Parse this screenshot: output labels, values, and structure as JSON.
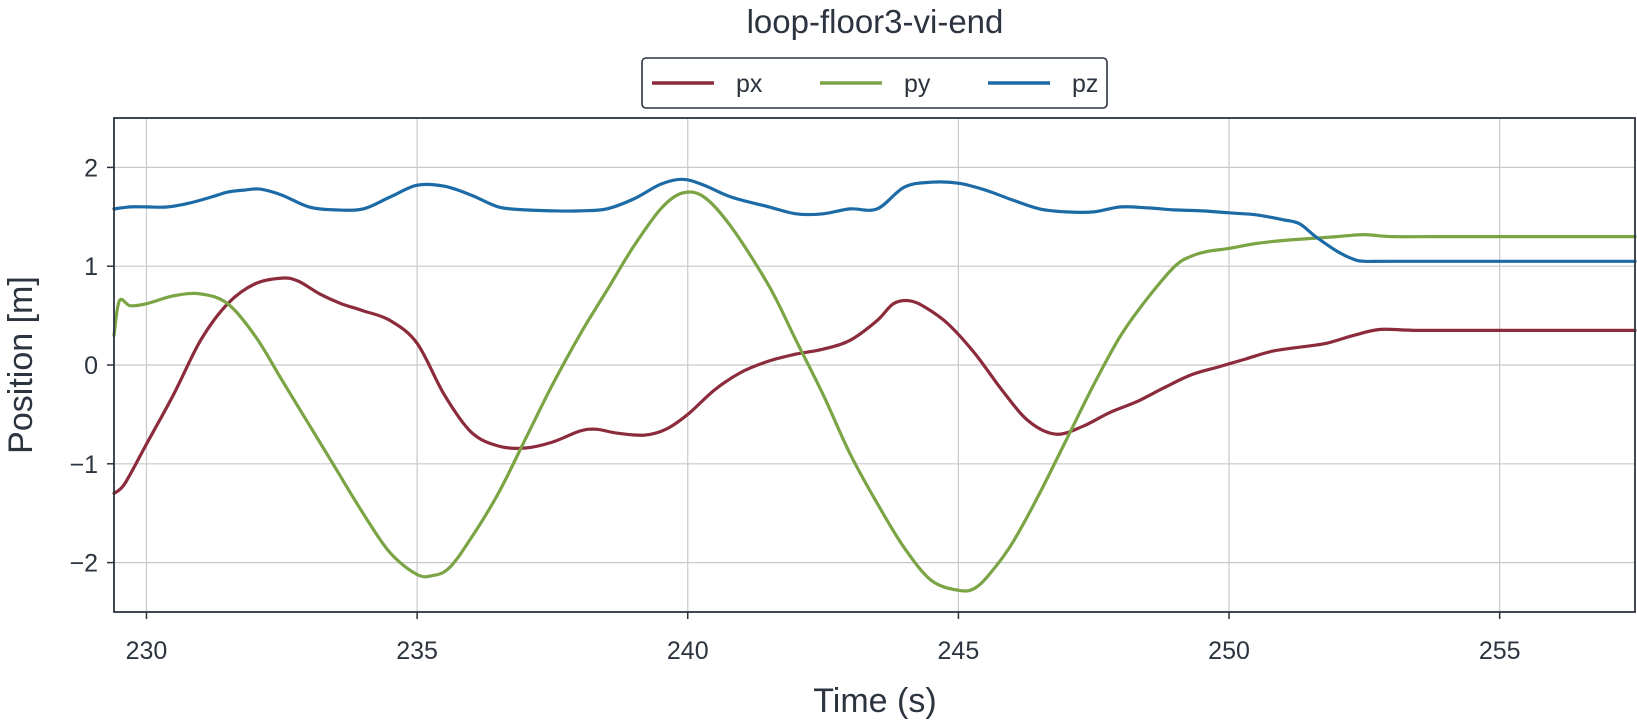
{
  "chart_data": {
    "type": "line",
    "title": "loop-floor3-vi-end",
    "xlabel": "Time (s)",
    "ylabel": "Position [m]",
    "xlim": [
      229.4,
      257.5
    ],
    "ylim": [
      -2.5,
      2.5
    ],
    "xticks": [
      230,
      235,
      240,
      245,
      250,
      255
    ],
    "xtick_labels": [
      "230",
      "235",
      "240",
      "245",
      "250",
      "255"
    ],
    "yticks": [
      2,
      1,
      0,
      -1,
      -2
    ],
    "ytick_labels": [
      "2",
      "1",
      "0",
      "−1",
      "−2"
    ],
    "grid": true,
    "legend_position": "top-center",
    "series": [
      {
        "name": "px",
        "color": "#8b2b3b",
        "x": [
          229.4,
          229.6,
          230.0,
          230.5,
          231.0,
          231.5,
          232.0,
          232.5,
          232.8,
          233.2,
          233.6,
          234.0,
          234.5,
          235.0,
          235.5,
          236.0,
          236.5,
          237.0,
          237.5,
          238.0,
          238.3,
          238.7,
          239.2,
          239.6,
          240.0,
          240.5,
          241.0,
          241.5,
          242.0,
          242.5,
          243.0,
          243.5,
          243.8,
          244.1,
          244.4,
          244.8,
          245.3,
          245.8,
          246.3,
          246.8,
          247.3,
          247.8,
          248.3,
          248.8,
          249.3,
          249.8,
          250.3,
          250.8,
          251.3,
          251.8,
          252.3,
          252.8,
          253.5,
          255.0,
          257.5
        ],
        "values": [
          -1.3,
          -1.2,
          -0.8,
          -0.3,
          0.25,
          0.62,
          0.82,
          0.88,
          0.85,
          0.72,
          0.62,
          0.55,
          0.45,
          0.22,
          -0.3,
          -0.68,
          -0.82,
          -0.84,
          -0.78,
          -0.67,
          -0.65,
          -0.69,
          -0.71,
          -0.65,
          -0.5,
          -0.25,
          -0.07,
          0.04,
          0.11,
          0.16,
          0.25,
          0.45,
          0.62,
          0.65,
          0.58,
          0.42,
          0.12,
          -0.25,
          -0.57,
          -0.7,
          -0.62,
          -0.48,
          -0.37,
          -0.23,
          -0.1,
          -0.02,
          0.06,
          0.14,
          0.18,
          0.22,
          0.3,
          0.36,
          0.35,
          0.35,
          0.35
        ]
      },
      {
        "name": "py",
        "color": "#7ba445",
        "x": [
          229.4,
          229.5,
          229.7,
          230.0,
          230.5,
          231.0,
          231.5,
          232.0,
          232.5,
          233.0,
          233.5,
          234.0,
          234.5,
          235.0,
          235.3,
          235.6,
          236.0,
          236.5,
          237.0,
          237.5,
          238.0,
          238.5,
          239.0,
          239.5,
          239.9,
          240.3,
          240.8,
          241.5,
          242.0,
          242.5,
          243.0,
          243.5,
          244.0,
          244.5,
          245.0,
          245.3,
          245.6,
          246.0,
          246.5,
          247.0,
          247.5,
          248.0,
          248.5,
          249.0,
          249.3,
          249.6,
          250.0,
          250.5,
          251.0,
          251.5,
          252.0,
          252.5,
          253.0,
          254.0,
          257.5
        ],
        "values": [
          0.3,
          0.65,
          0.6,
          0.62,
          0.7,
          0.72,
          0.62,
          0.3,
          -0.15,
          -0.6,
          -1.05,
          -1.5,
          -1.9,
          -2.12,
          -2.13,
          -2.05,
          -1.75,
          -1.3,
          -0.75,
          -0.2,
          0.3,
          0.75,
          1.2,
          1.58,
          1.74,
          1.7,
          1.4,
          0.8,
          0.25,
          -0.3,
          -0.9,
          -1.4,
          -1.85,
          -2.18,
          -2.28,
          -2.26,
          -2.1,
          -1.8,
          -1.3,
          -0.75,
          -0.2,
          0.3,
          0.68,
          1.0,
          1.1,
          1.15,
          1.18,
          1.23,
          1.26,
          1.28,
          1.3,
          1.32,
          1.3,
          1.3,
          1.3
        ]
      },
      {
        "name": "pz",
        "color": "#1c6ba6",
        "x": [
          229.4,
          229.7,
          230.0,
          230.4,
          230.8,
          231.2,
          231.5,
          231.8,
          232.1,
          232.5,
          233.0,
          233.5,
          234.0,
          234.5,
          235.0,
          235.5,
          236.0,
          236.5,
          237.0,
          237.5,
          238.0,
          238.5,
          239.0,
          239.5,
          239.9,
          240.3,
          240.8,
          241.5,
          242.0,
          242.5,
          243.0,
          243.5,
          244.0,
          244.5,
          245.0,
          245.5,
          246.0,
          246.5,
          247.0,
          247.5,
          248.0,
          248.5,
          249.0,
          249.5,
          250.0,
          250.5,
          251.0,
          251.3,
          251.6,
          252.0,
          252.3,
          252.5,
          253.0,
          255.0,
          257.5
        ],
        "values": [
          1.58,
          1.6,
          1.6,
          1.6,
          1.64,
          1.7,
          1.75,
          1.77,
          1.78,
          1.72,
          1.6,
          1.57,
          1.58,
          1.7,
          1.82,
          1.81,
          1.72,
          1.6,
          1.57,
          1.56,
          1.56,
          1.58,
          1.68,
          1.83,
          1.88,
          1.82,
          1.7,
          1.6,
          1.53,
          1.53,
          1.58,
          1.58,
          1.8,
          1.85,
          1.84,
          1.77,
          1.67,
          1.58,
          1.55,
          1.55,
          1.6,
          1.59,
          1.57,
          1.56,
          1.54,
          1.52,
          1.47,
          1.43,
          1.3,
          1.15,
          1.07,
          1.05,
          1.05,
          1.05,
          1.05
        ]
      }
    ]
  }
}
